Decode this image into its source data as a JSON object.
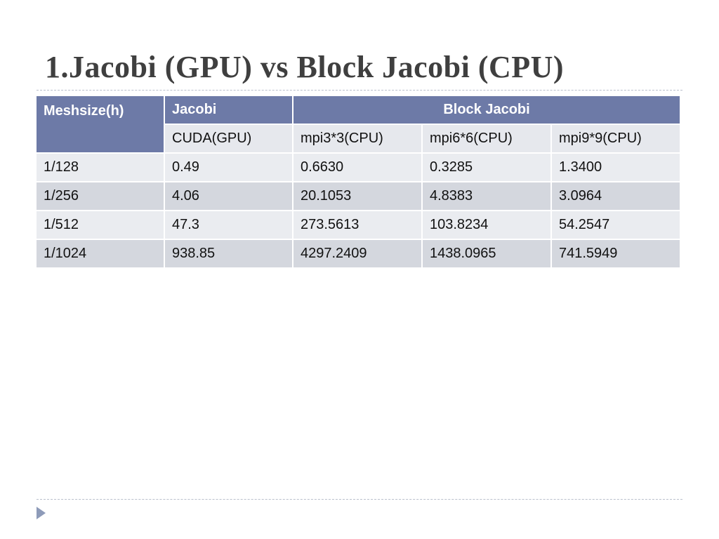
{
  "slide": {
    "title": "1.Jacobi (GPU) vs Block Jacobi (CPU)"
  },
  "table": {
    "header": {
      "meshsize": "Meshsize(h)",
      "jacobi": "Jacobi",
      "block_jacobi": "Block Jacobi"
    },
    "subheaders": [
      "CUDA(GPU)",
      "mpi3*3(CPU)",
      "mpi6*6(CPU)",
      "mpi9*9(CPU)"
    ],
    "rows": [
      [
        "1/128",
        "0.49",
        "0.6630",
        "0.3285",
        "1.3400"
      ],
      [
        "1/256",
        "4.06",
        "20.1053",
        "4.8383",
        "3.0964"
      ],
      [
        "1/512",
        "47.3",
        "273.5613",
        "103.8234",
        "54.2547"
      ],
      [
        "1/1024",
        "938.85",
        "4297.2409",
        "1438.0965",
        "741.5949"
      ]
    ]
  },
  "colors": {
    "header_bg": "#6d7aa7",
    "row_light": "#eaecf0",
    "row_dark": "#d4d7de",
    "title_text": "#3f3f3f",
    "bullet": "#8e9bb9"
  },
  "icons": {
    "footer_bullet": "triangle-right-icon"
  }
}
